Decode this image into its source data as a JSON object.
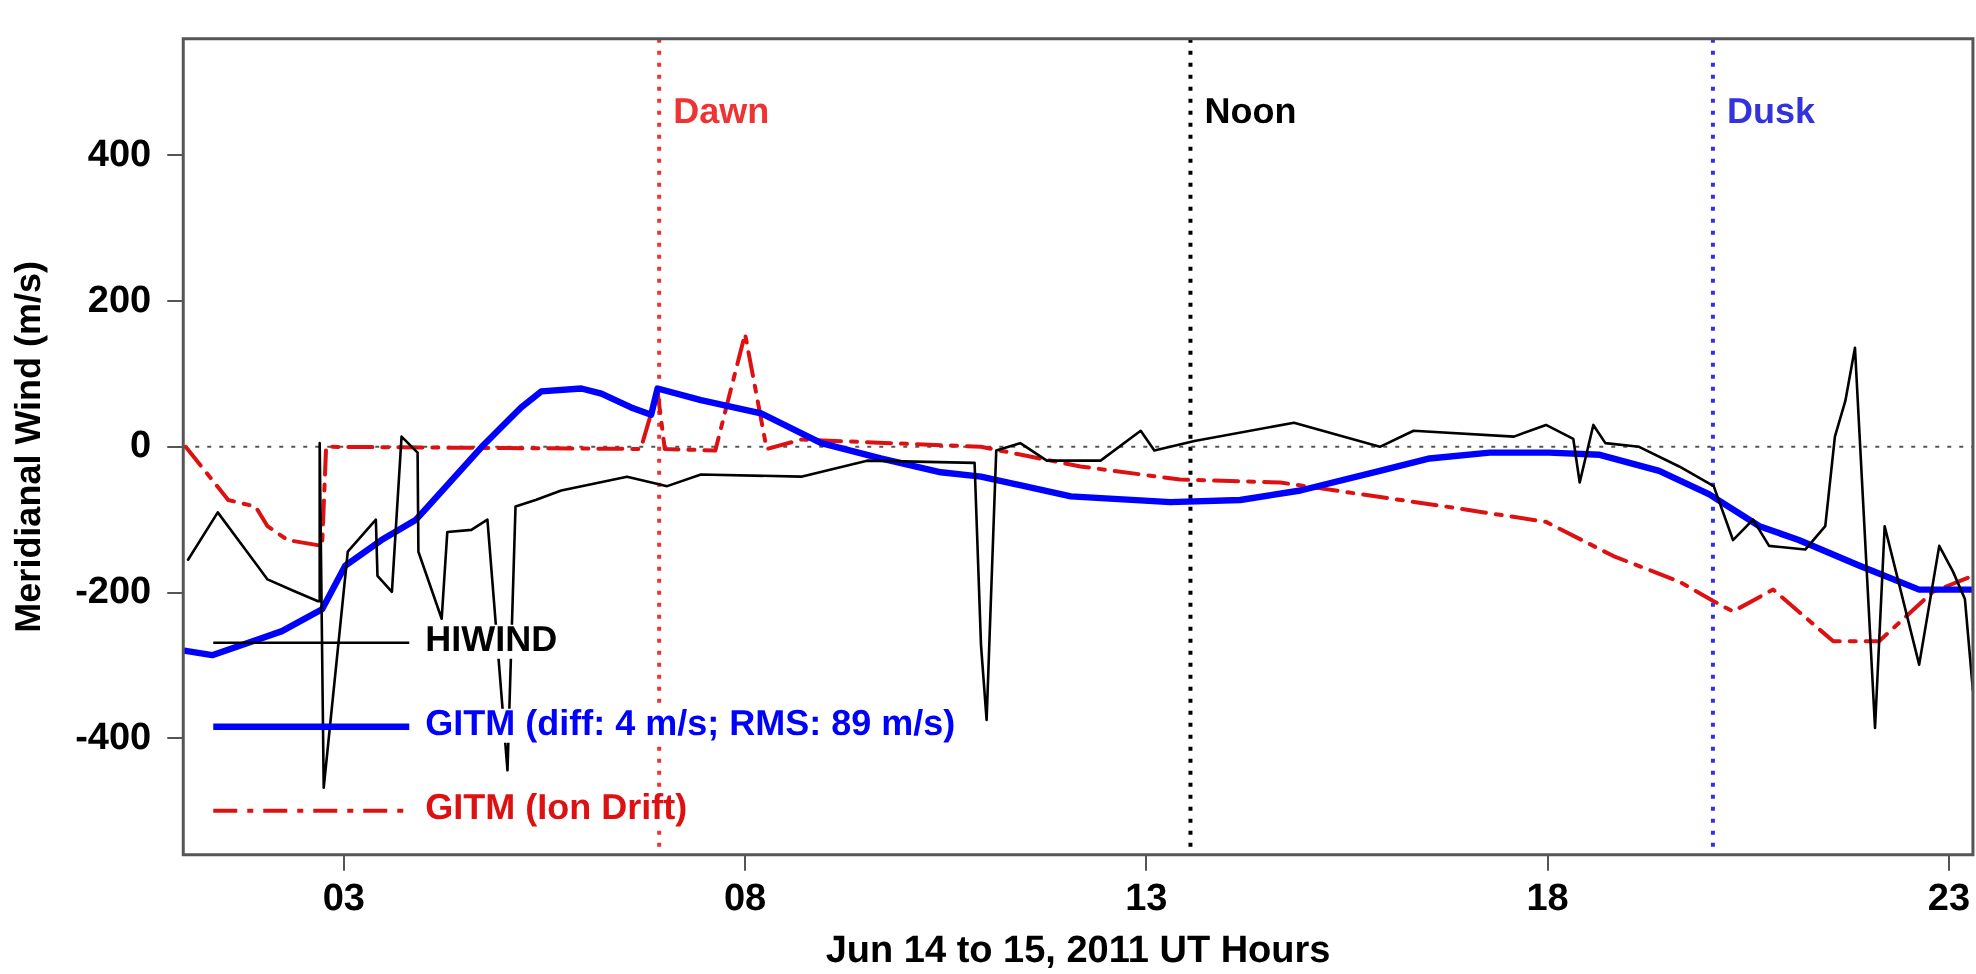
{
  "chart_data": {
    "type": "line",
    "xlabel": "Jun 14 to 15, 2011 UT Hours",
    "ylabel": "Meridianal Wind (m/s)",
    "xlim": [
      1,
      23.3
    ],
    "ylim": [
      -560,
      560
    ],
    "xticks": [
      {
        "value": 3,
        "label": "03"
      },
      {
        "value": 8,
        "label": "08"
      },
      {
        "value": 13,
        "label": "13"
      },
      {
        "value": 18,
        "label": "18"
      },
      {
        "value": 23,
        "label": "23"
      }
    ],
    "yticks": [
      -400,
      -200,
      0,
      200,
      400
    ],
    "grid": false,
    "legend": "bottom left",
    "marker": "none",
    "series": [
      {
        "name": "HIWIND",
        "color": "#000000",
        "line_style": "solid",
        "x": [
          1.06,
          1.43,
          2.05,
          2.4,
          2.68,
          2.7,
          2.75,
          3.05,
          3.4,
          3.42,
          3.6,
          3.72,
          3.92,
          3.93,
          4.22,
          4.29,
          4.59,
          4.79,
          5.04,
          5.14,
          5.39,
          5.71,
          6.53,
          7.03,
          7.45,
          8.7,
          9.52,
          10.86,
          10.94,
          11.01,
          11.13,
          11.43,
          11.76,
          12.43,
          12.93,
          13.1,
          13.6,
          14.84,
          15.91,
          16.33,
          17.58,
          17.98,
          18.32,
          18.4,
          18.57,
          18.72,
          19.14,
          19.64,
          20.07,
          20.31,
          20.56,
          20.76,
          21.21,
          21.46,
          21.58,
          21.71,
          21.83,
          22.08,
          22.2,
          22.63,
          22.88,
          23.05,
          23.2,
          23.3
        ],
        "values": [
          -155,
          -90,
          -182,
          -199,
          -212,
          5,
          -468,
          -144,
          -100,
          -177,
          -199,
          14,
          -8,
          -144,
          -236,
          -117,
          -114,
          -100,
          -444,
          -82,
          -73,
          -60,
          -41,
          -54,
          -38,
          -41,
          -19,
          -22,
          -272,
          -375,
          -5,
          5,
          -19,
          -19,
          22,
          -5,
          8,
          33,
          0,
          22,
          14,
          30,
          11,
          -49,
          30,
          5,
          0,
          -27,
          -54,
          -128,
          -100,
          -136,
          -141,
          -109,
          14,
          63,
          136,
          -386,
          -109,
          -299,
          -136,
          -171,
          -209,
          -335
        ]
      },
      {
        "name": "GITM (diff: 4 m/s; RMS: 89 m/s)",
        "color": "#0000ff",
        "line_style": "solid",
        "x": [
          1.03,
          1.36,
          2.23,
          2.73,
          3.02,
          3.47,
          3.9,
          4.09,
          4.72,
          5.21,
          5.46,
          5.96,
          6.21,
          6.58,
          6.83,
          6.91,
          7.45,
          8.2,
          8.95,
          9.69,
          10.44,
          10.94,
          12.06,
          13.3,
          14.17,
          14.92,
          15.91,
          16.53,
          17.28,
          18.02,
          18.65,
          19.39,
          20.01,
          20.64,
          21.13,
          21.88,
          22.63,
          23.3
        ],
        "values": [
          -280,
          -286,
          -253,
          -223,
          -163,
          -128,
          -100,
          -77,
          0,
          54,
          76,
          80,
          73,
          54,
          44,
          80,
          64,
          46,
          5,
          -16,
          -35,
          -41,
          -68,
          -76,
          -73,
          -60,
          -33,
          -16,
          -8,
          -8,
          -11,
          -33,
          -65,
          -109,
          -128,
          -163,
          -196,
          -196
        ]
      },
      {
        "name": "GITM (Ion Drift)",
        "color": "#dd1111",
        "line_style": "dashdot",
        "x": [
          1.03,
          1.56,
          1.9,
          2.05,
          2.3,
          2.73,
          2.78,
          6.7,
          6.91,
          7.0,
          7.63,
          8.0,
          8.27,
          8.7,
          10.94,
          12.18,
          13.42,
          14.67,
          16.73,
          17.98,
          18.82,
          19.64,
          20.07,
          20.31,
          20.81,
          21.56,
          22.13,
          22.8,
          23.3
        ],
        "values": [
          0,
          -73,
          -82,
          -109,
          -128,
          -136,
          0,
          -3,
          76,
          -3,
          -5,
          155,
          -3,
          10,
          0,
          -27,
          -45,
          -49,
          -82,
          -103,
          -150,
          -185,
          -212,
          -226,
          -196,
          -267,
          -267,
          -199,
          -177
        ]
      }
    ],
    "ref_lines": [
      {
        "axis": "x",
        "value": 6.93,
        "label": "Dawn",
        "color": "#ee3333",
        "line_style": "dotted"
      },
      {
        "axis": "x",
        "value": 13.55,
        "label": "Noon",
        "color": "#000000",
        "line_style": "dotted"
      },
      {
        "axis": "x",
        "value": 20.06,
        "label": "Dusk",
        "color": "#3333dd",
        "line_style": "dotted"
      },
      {
        "axis": "y",
        "value": 0,
        "color": "#555555",
        "line_style": "dotted"
      }
    ]
  }
}
